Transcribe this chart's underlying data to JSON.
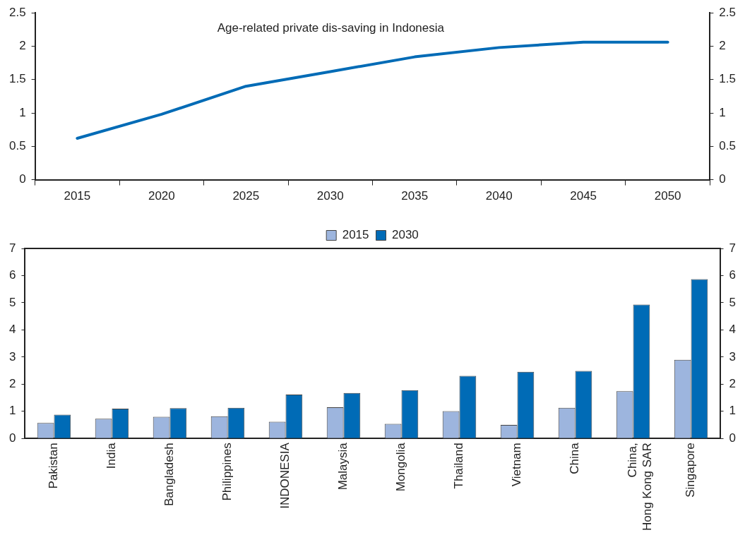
{
  "chart_data": [
    {
      "type": "line",
      "categories": [
        "2015",
        "2020",
        "2025",
        "2030",
        "2035",
        "2040",
        "2045",
        "2050"
      ],
      "series": [
        {
          "name": "Age-related private dis-saving in Indonesia",
          "color": "#006bb6",
          "values": [
            0.62,
            0.98,
            1.4,
            1.62,
            1.84,
            1.98,
            2.06,
            2.06
          ]
        }
      ],
      "ylim": [
        0,
        2.5
      ],
      "yticks": [
        0,
        0.5,
        1,
        1.5,
        2,
        2.5
      ],
      "y2lim": [
        0,
        2.5
      ],
      "y2ticks": [
        0,
        0.5,
        1,
        1.5,
        2,
        2.5
      ],
      "grid": false,
      "legend": false,
      "marker": "none"
    },
    {
      "type": "bar",
      "categories": [
        "Pakistan",
        "India",
        "Bangladesh",
        "Philippines",
        "INDONESIA",
        "Malaysia",
        "Mongolia",
        "Thailand",
        "Vietnam",
        "China",
        "China,\nHong Kong SAR",
        "Singapore"
      ],
      "series": [
        {
          "name": "2015",
          "color": "#9db5de",
          "values": [
            0.57,
            0.73,
            0.8,
            0.82,
            0.62,
            1.15,
            0.54,
            1.01,
            0.5,
            1.13,
            1.74,
            2.9
          ]
        },
        {
          "name": "2030",
          "color": "#006bb6",
          "values": [
            0.88,
            1.1,
            1.12,
            1.13,
            1.62,
            1.68,
            1.78,
            2.31,
            2.46,
            2.49,
            4.93,
            5.87
          ]
        }
      ],
      "ylim": [
        0,
        7
      ],
      "yticks": [
        0,
        1,
        2,
        3,
        4,
        5,
        6,
        7
      ],
      "y2lim": [
        0,
        7
      ],
      "y2ticks": [
        0,
        1,
        2,
        3,
        4,
        5,
        6,
        7
      ],
      "grid": false,
      "legend": "top"
    }
  ]
}
